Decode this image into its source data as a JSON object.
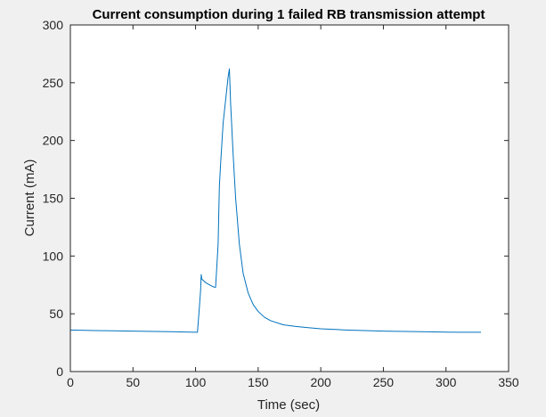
{
  "chart_data": {
    "type": "line",
    "title": "Current consumption during 1 failed RB transmission attempt",
    "xlabel": "Time (sec)",
    "ylabel": "Current (mA)",
    "xlim": [
      0,
      350
    ],
    "ylim": [
      0,
      300
    ],
    "xticks": [
      0,
      50,
      100,
      150,
      200,
      250,
      300,
      350
    ],
    "yticks": [
      0,
      50,
      100,
      150,
      200,
      250,
      300
    ],
    "xtick_labels": [
      "0",
      "50",
      "100",
      "150",
      "200",
      "250",
      "300",
      "350"
    ],
    "ytick_labels": [
      "0",
      "50",
      "100",
      "150",
      "200",
      "250",
      "300"
    ],
    "grid": false,
    "legend": "none",
    "line_color": "#0072bd",
    "series": [
      {
        "x": [
          0,
          20,
          50,
          80,
          100,
          101.5,
          103,
          104,
          104.5,
          105,
          108,
          112,
          115,
          116,
          118,
          119,
          120,
          122,
          124,
          125,
          126,
          127,
          128,
          130,
          132,
          135,
          138,
          142,
          146,
          150,
          155,
          160,
          170,
          180,
          190,
          200,
          220,
          250,
          280,
          310,
          328
        ],
        "y": [
          36,
          35.5,
          35,
          34.5,
          34,
          34,
          55,
          70,
          84,
          80,
          77,
          74.5,
          73,
          73,
          110,
          160,
          180,
          215,
          235,
          245,
          255,
          262,
          232,
          188,
          150,
          110,
          85,
          68,
          58,
          52,
          47,
          44,
          40.5,
          39,
          38,
          37,
          36,
          35,
          34.5,
          34,
          34
        ]
      }
    ]
  }
}
